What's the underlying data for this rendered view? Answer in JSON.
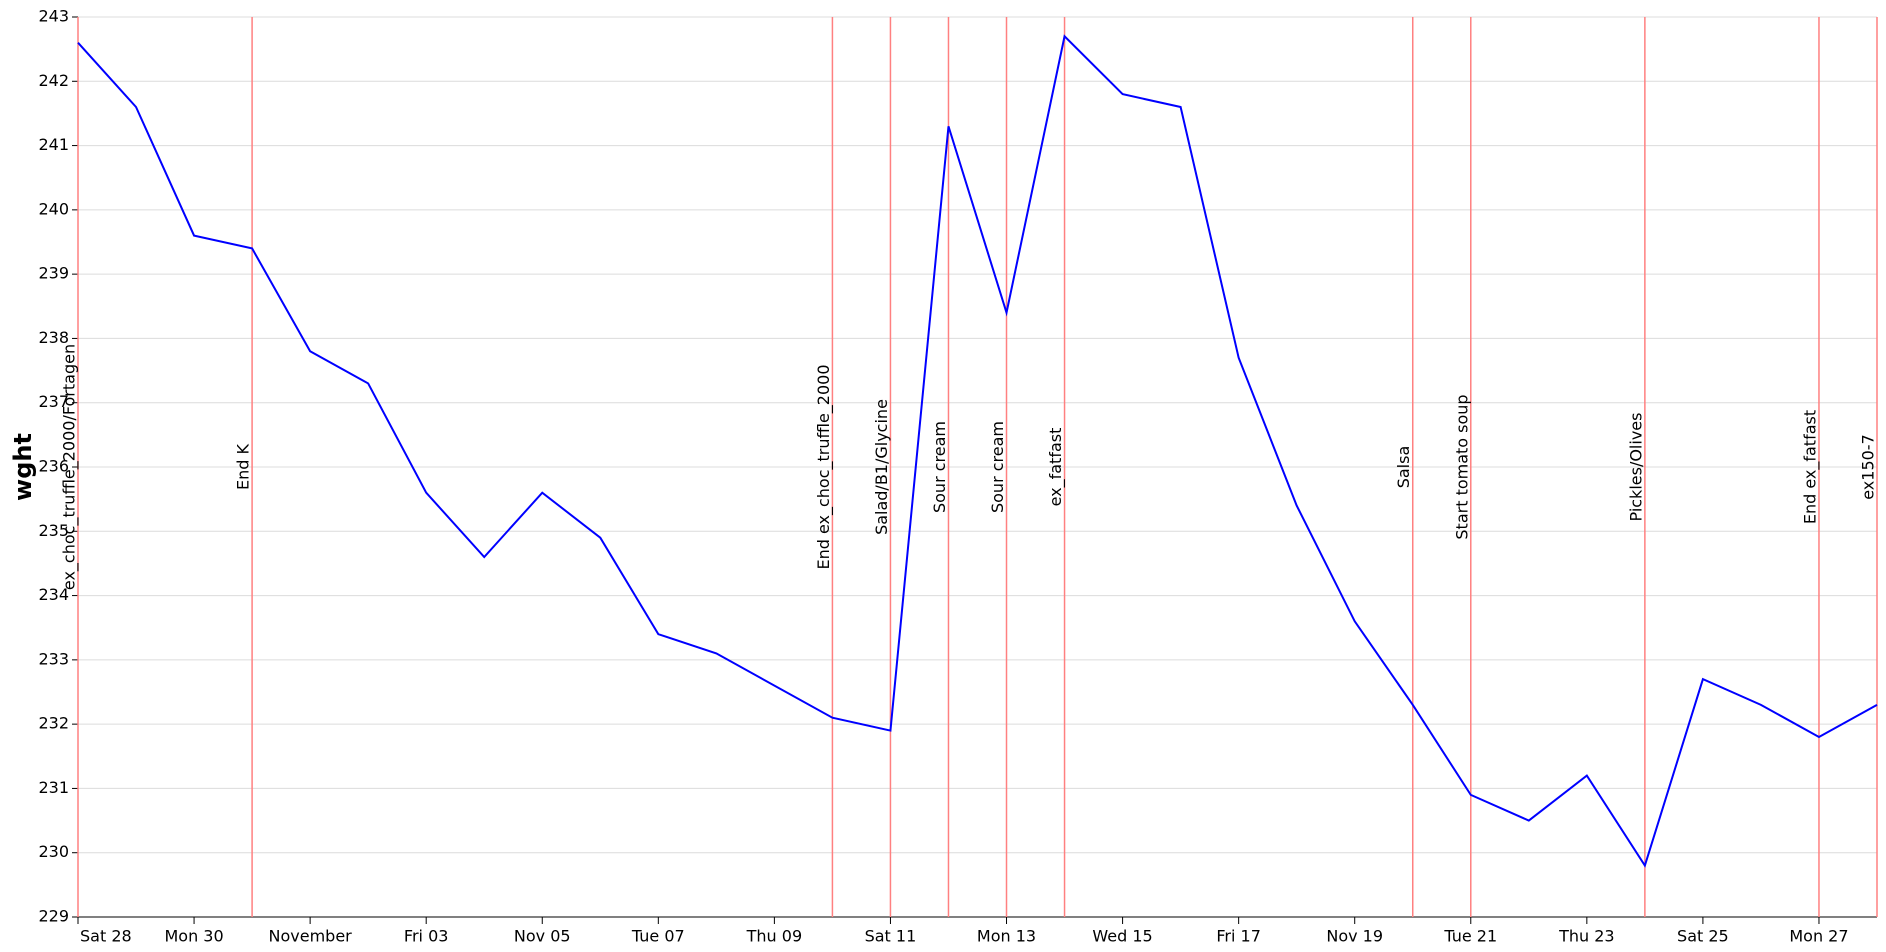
{
  "chart_data": {
    "type": "line",
    "y_label": "wght",
    "x": [
      "Oct 28",
      "Oct 29",
      "Oct 30",
      "Oct 31",
      "Nov 1",
      "Nov 2",
      "Nov 3",
      "Nov 4",
      "Nov 5",
      "Nov 6",
      "Nov 7",
      "Nov 8",
      "Nov 10",
      "Nov 11",
      "Nov 12",
      "Nov 13",
      "Nov 14",
      "Nov 15",
      "Nov 16",
      "Nov 17",
      "Nov 18",
      "Nov 19",
      "Nov 20",
      "Nov 21",
      "Nov 22",
      "Nov 23",
      "Nov 24",
      "Nov 25",
      "Nov 26",
      "Nov 27",
      "Nov 28"
    ],
    "series": [
      {
        "name": "wght",
        "color": "#0000ff",
        "values": [
          242.6,
          241.6,
          239.6,
          239.4,
          237.8,
          237.3,
          235.6,
          234.6,
          235.6,
          234.9,
          233.4,
          233.1,
          232.1,
          231.9,
          241.3,
          238.4,
          242.7,
          241.8,
          241.6,
          237.7,
          235.4,
          233.6,
          232.3,
          230.9,
          230.5,
          231.2,
          229.8,
          232.7,
          232.3,
          231.8,
          232.3
        ]
      }
    ],
    "xlim": [
      "Oct 28",
      "Nov 28"
    ],
    "xticks": [
      {
        "value": "Oct 28",
        "label": "Sat 28"
      },
      {
        "value": "Oct 30",
        "label": "Mon 30"
      },
      {
        "value": "Nov 1",
        "label": "November"
      },
      {
        "value": "Nov 3",
        "label": "Fri 03"
      },
      {
        "value": "Nov 5",
        "label": "Nov 05"
      },
      {
        "value": "Nov 7",
        "label": "Tue 07"
      },
      {
        "value": "Nov 9",
        "label": "Thu 09"
      },
      {
        "value": "Nov 11",
        "label": "Sat 11"
      },
      {
        "value": "Nov 13",
        "label": "Mon 13"
      },
      {
        "value": "Nov 15",
        "label": "Wed 15"
      },
      {
        "value": "Nov 17",
        "label": "Fri 17"
      },
      {
        "value": "Nov 19",
        "label": "Nov 19"
      },
      {
        "value": "Nov 21",
        "label": "Tue 21"
      },
      {
        "value": "Nov 23",
        "label": "Thu 23"
      },
      {
        "value": "Nov 25",
        "label": "Sat 25"
      },
      {
        "value": "Nov 27",
        "label": "Mon 27"
      }
    ],
    "ylim": [
      229,
      243
    ],
    "yticks": [
      229,
      230,
      231,
      232,
      233,
      234,
      235,
      236,
      237,
      238,
      239,
      240,
      241,
      242,
      243
    ],
    "grid": true,
    "annotation_color": "#ff0000",
    "annotations": [
      {
        "x": "Oct 28",
        "label": "ex_choc_truffle_2000/Fortagen"
      },
      {
        "x": "Oct 31",
        "label": "End K"
      },
      {
        "x": "Nov 10",
        "label": "End ex_choc_truffle_2000"
      },
      {
        "x": "Nov 11",
        "label": "Salad/B1/Glycine"
      },
      {
        "x": "Nov 12",
        "label": "Sour cream"
      },
      {
        "x": "Nov 13",
        "label": "Sour cream"
      },
      {
        "x": "Nov 14",
        "label": "ex_fatfast"
      },
      {
        "x": "Nov 20",
        "label": "Salsa"
      },
      {
        "x": "Nov 21",
        "label": "Start tomato soup"
      },
      {
        "x": "Nov 24",
        "label": "Pickles/Olives"
      },
      {
        "x": "Nov 27",
        "label": "End ex_fatfast"
      },
      {
        "x": "Nov 28",
        "label": "ex150-7"
      }
    ]
  }
}
